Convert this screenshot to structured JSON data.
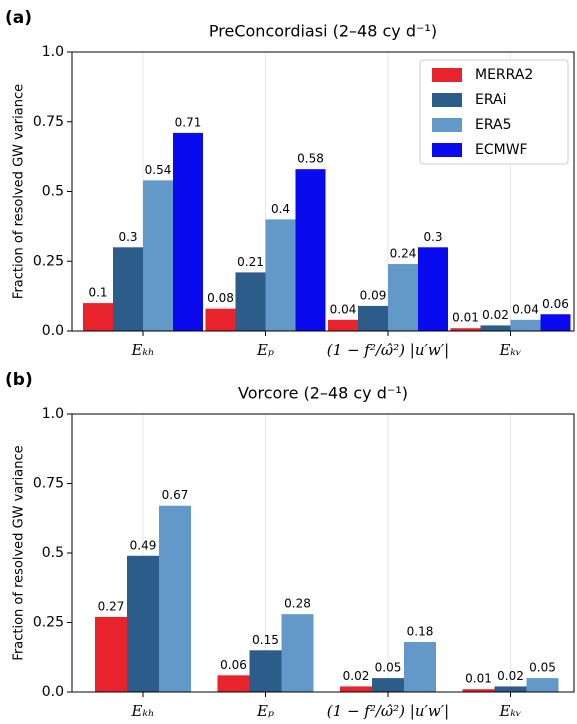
{
  "chart_data": [
    {
      "type": "bar",
      "panel": "(a)",
      "title": "PreConcordiasi (2–48 cy d⁻¹)",
      "ylabel": "Fraction of resolved GW variance",
      "categories": [
        "Eₖₕ",
        "Eₚ",
        "(1 − f²/ω̂²) |u′w′|",
        "Eₖᵥ"
      ],
      "series": [
        {
          "name": "MERRA2",
          "color": "#e8232b",
          "values": [
            0.1,
            0.08,
            0.04,
            0.01
          ]
        },
        {
          "name": "ERAi",
          "color": "#2b5c8a",
          "values": [
            0.3,
            0.21,
            0.09,
            0.02
          ]
        },
        {
          "name": "ERA5",
          "color": "#6399c9",
          "values": [
            0.54,
            0.4,
            0.24,
            0.04
          ]
        },
        {
          "name": "ECMWF",
          "color": "#0a0aef",
          "values": [
            0.71,
            0.58,
            0.3,
            0.06
          ]
        }
      ],
      "ylim": [
        0,
        1
      ],
      "yticks": [
        {
          "value": 0,
          "label": "0.0"
        },
        0.25,
        0.5,
        0.75,
        {
          "value": 1,
          "label": "1.0"
        }
      ],
      "grid": "x",
      "legend": "upper right"
    },
    {
      "type": "bar",
      "panel": "(b)",
      "title": "Vorcore (2–48 cy d⁻¹)",
      "ylabel": "Fraction of resolved GW variance",
      "categories": [
        "Eₖₕ",
        "Eₚ",
        "(1 − f²/ω̂²) |u′w′|",
        "Eₖᵥ"
      ],
      "series": [
        {
          "name": "MERRA2",
          "color": "#e8232b",
          "values": [
            0.27,
            0.06,
            0.02,
            0.01
          ]
        },
        {
          "name": "ERAi",
          "color": "#2b5c8a",
          "values": [
            0.49,
            0.15,
            0.05,
            0.02
          ]
        },
        {
          "name": "ERA5",
          "color": "#6399c9",
          "values": [
            0.67,
            0.28,
            0.18,
            0.05
          ]
        }
      ],
      "ylim": [
        0,
        1
      ],
      "yticks": [
        {
          "value": 0,
          "label": "0.0"
        },
        0.25,
        0.5,
        0.75,
        {
          "value": 1,
          "label": "1.0"
        }
      ],
      "grid": "x"
    }
  ]
}
